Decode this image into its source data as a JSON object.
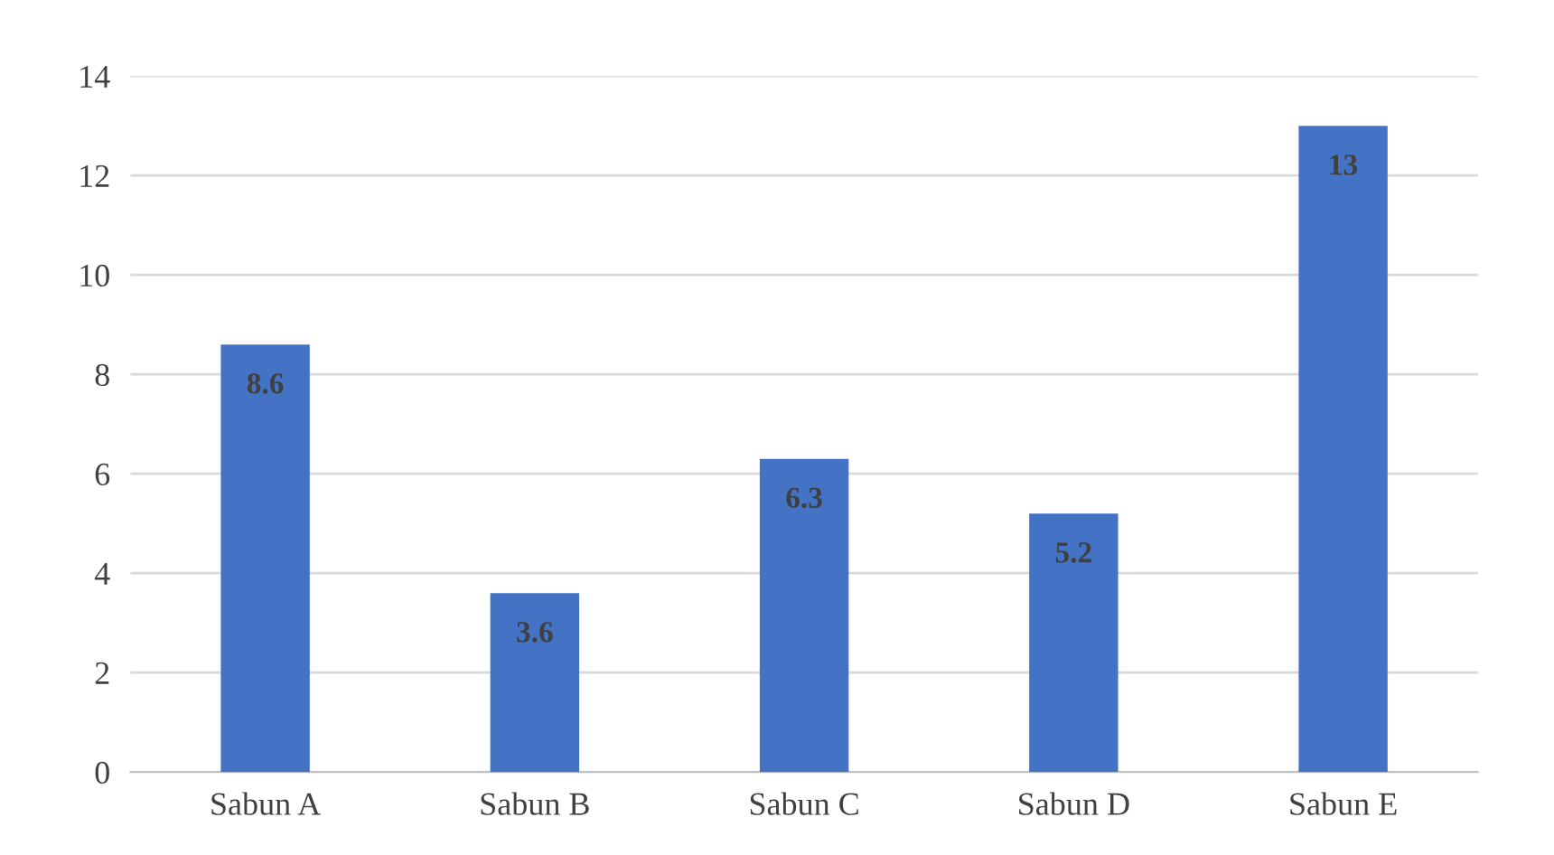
{
  "chart_data": {
    "type": "bar",
    "categories": [
      "Sabun A",
      "Sabun B",
      "Sabun C",
      "Sabun D",
      "Sabun E"
    ],
    "values": [
      8.6,
      3.6,
      6.3,
      5.2,
      13
    ],
    "color": "#4472c4",
    "ylim": [
      0,
      14
    ],
    "yticks": [
      0,
      2,
      4,
      6,
      8,
      10,
      12,
      14
    ],
    "grid": "y",
    "data_labels": true
  }
}
